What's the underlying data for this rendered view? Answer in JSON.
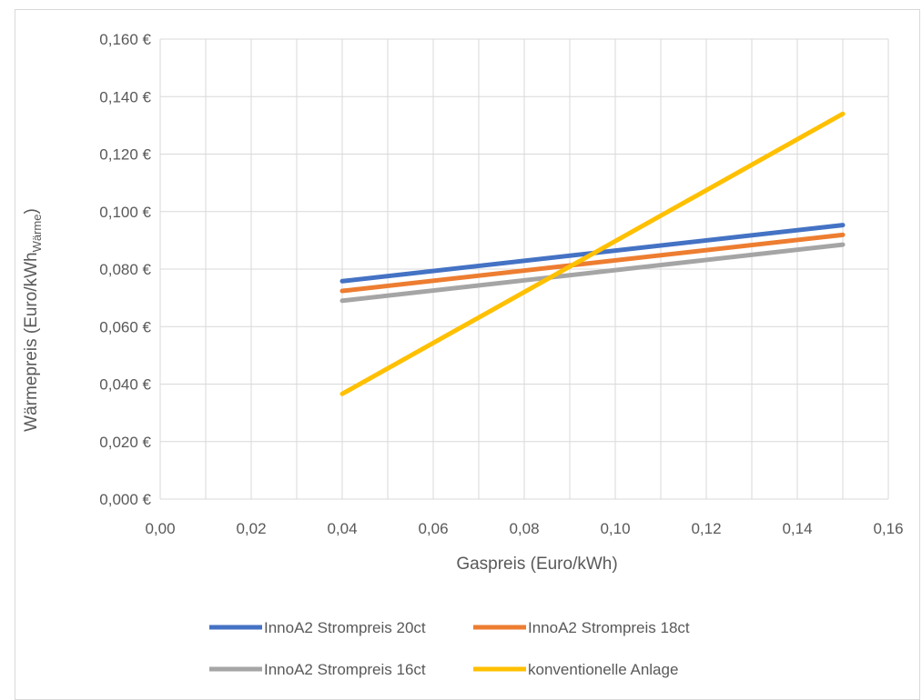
{
  "chart_data": {
    "type": "line",
    "title": "",
    "xlabel": "Gaspreis (Euro/kWh)",
    "ylabel": "Wärmepreis (Euro/kWh",
    "ylabel_subscript": "Wärme",
    "ylabel_close": ")",
    "xlim": [
      0,
      0.16
    ],
    "ylim": [
      0,
      0.16
    ],
    "x_ticks": [
      "0,00",
      "0,02",
      "0,04",
      "0,06",
      "0,08",
      "0,10",
      "0,12",
      "0,14",
      "0,16"
    ],
    "y_ticks": [
      "0,000 €",
      "0,020 €",
      "0,040 €",
      "0,060 €",
      "0,080 €",
      "0,100 €",
      "0,120 €",
      "0,140 €",
      "0,160 €"
    ],
    "grid": true,
    "legend_position": "bottom",
    "x": [
      0.04,
      0.15
    ],
    "series": [
      {
        "name": "InnoA2 Strompreis 20ct",
        "color": "#4472c4",
        "values": [
          0.0758,
          0.0953
        ]
      },
      {
        "name": "InnoA2 Strompreis 18ct",
        "color": "#ed7d31",
        "values": [
          0.0724,
          0.0919
        ]
      },
      {
        "name": "InnoA2 Strompreis 16ct",
        "color": "#a5a5a5",
        "values": [
          0.069,
          0.0885
        ]
      },
      {
        "name": "konventionelle Anlage",
        "color": "#ffc000",
        "values": [
          0.0366,
          0.134
        ]
      }
    ]
  }
}
